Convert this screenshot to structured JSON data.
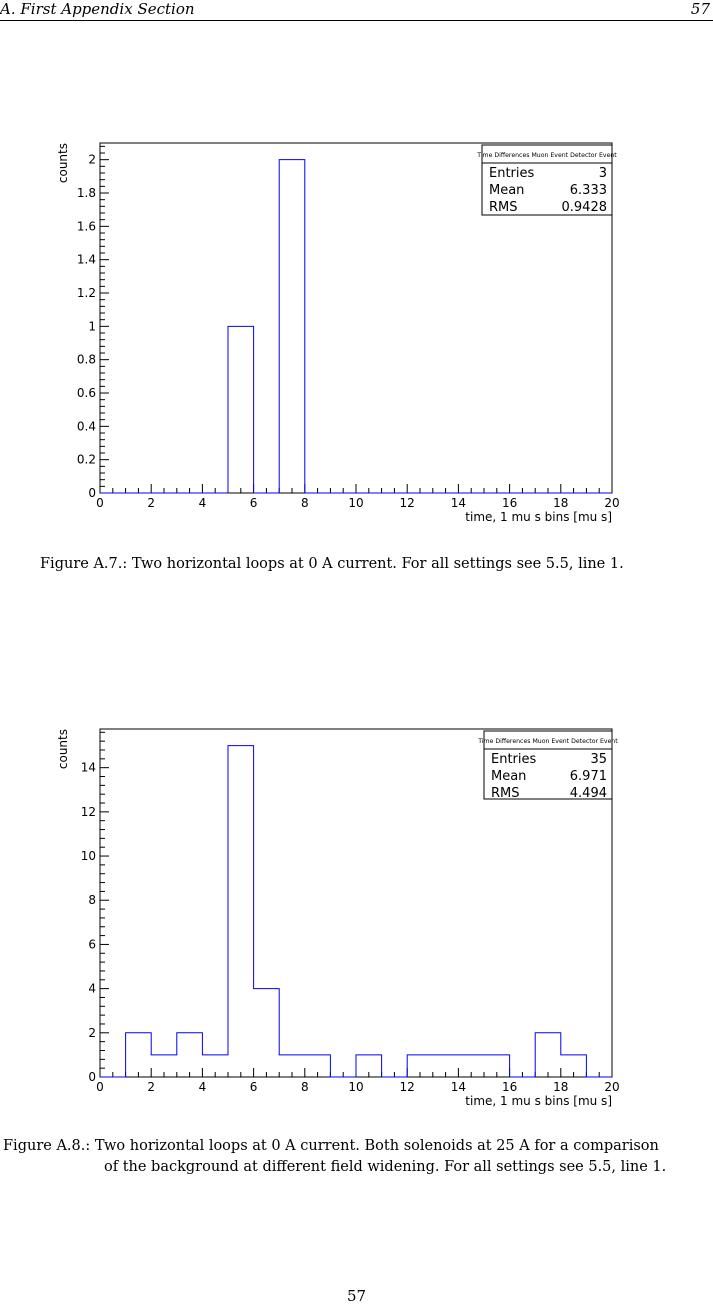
{
  "header": {
    "section": "A.  First Appendix Section",
    "page": "57"
  },
  "footer": {
    "page": "57"
  },
  "figures": [
    {
      "caption_lines": [
        "Figure A.7.: Two horizontal loops at 0 A current. For all settings see 5.5, line 1."
      ]
    },
    {
      "caption_lines": [
        "Figure A.8.: Two horizontal loops at 0 A current. Both solenoids at 25 A for a comparison",
        "of the background at different field widening. For all settings see 5.5, line 1."
      ]
    }
  ],
  "chart_data": [
    {
      "type": "bar",
      "subtype": "histogram",
      "xlabel": "time, 1 mu s bins [mu s]",
      "ylabel": "counts",
      "xlim": [
        0,
        20
      ],
      "ylim": [
        0,
        2.1
      ],
      "x_ticks": [
        0,
        2,
        4,
        6,
        8,
        10,
        12,
        14,
        16,
        18,
        20
      ],
      "y_ticks": [
        0,
        0.2,
        0.4,
        0.6,
        0.8,
        1,
        1.2,
        1.4,
        1.6,
        1.8,
        2
      ],
      "y_tick_labels": [
        "0",
        "0.2",
        "0.4",
        "0.6",
        "0.8",
        "1",
        "1.2",
        "1.4",
        "1.6",
        "1.8",
        "2"
      ],
      "bin_width": 1,
      "bin_edges_start": 0,
      "values": [
        0,
        0,
        0,
        0,
        0,
        1,
        0,
        2,
        0,
        0,
        0,
        0,
        0,
        0,
        0,
        0,
        0,
        0,
        0,
        0
      ],
      "line_color": "#0000ff",
      "stats": {
        "title": "Time Differences Muon Event Detector Event",
        "rows": [
          {
            "label": "Entries",
            "value": "3"
          },
          {
            "label": "Mean",
            "value": "6.333"
          },
          {
            "label": "RMS",
            "value": "0.9428"
          }
        ]
      }
    },
    {
      "type": "bar",
      "subtype": "histogram",
      "xlabel": "time, 1 mu s bins [mu s]",
      "ylabel": "counts",
      "xlim": [
        0,
        20
      ],
      "ylim": [
        0,
        15.75
      ],
      "x_ticks": [
        0,
        2,
        4,
        6,
        8,
        10,
        12,
        14,
        16,
        18,
        20
      ],
      "y_ticks": [
        0,
        2,
        4,
        6,
        8,
        10,
        12,
        14
      ],
      "y_tick_labels": [
        "0",
        "2",
        "4",
        "6",
        "8",
        "10",
        "12",
        "14"
      ],
      "bin_width": 1,
      "bin_edges_start": 0,
      "values": [
        0,
        2,
        1,
        2,
        1,
        15,
        4,
        1,
        1,
        0,
        1,
        0,
        1,
        1,
        1,
        1,
        0,
        2,
        1,
        0
      ],
      "line_color": "#0000ff",
      "stats": {
        "title": "Time Differences Muon Event Detector Event",
        "rows": [
          {
            "label": "Entries",
            "value": "35"
          },
          {
            "label": "Mean",
            "value": "6.971"
          },
          {
            "label": "RMS",
            "value": "4.494"
          }
        ]
      }
    }
  ]
}
